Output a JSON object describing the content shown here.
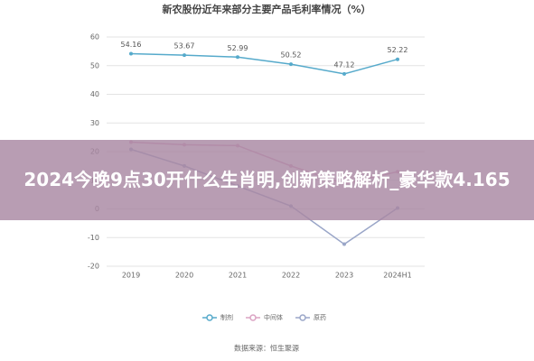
{
  "chart_data": {
    "type": "line",
    "title": "新农股份近年来部分主要产品毛利率情况（%）",
    "categories": [
      "2019",
      "2020",
      "2021",
      "2022",
      "2023",
      "2024H1"
    ],
    "series": [
      {
        "name": "制剂",
        "color": "#56aacb",
        "values": [
          54.16,
          53.67,
          52.99,
          50.52,
          47.12,
          52.22
        ],
        "labels": true
      },
      {
        "name": "中间体",
        "color": "#dba3c3",
        "values": [
          23.3,
          22.4,
          22.1,
          15,
          8.8,
          13
        ]
      },
      {
        "name": "原药",
        "color": "#9aa6c8",
        "values": [
          20.8,
          15,
          8,
          1,
          -12.3,
          0.3
        ]
      }
    ],
    "ylim": [
      -20,
      60
    ],
    "yticks": [
      -20,
      -10,
      0,
      10,
      20,
      30,
      40,
      50,
      60
    ],
    "grid": true,
    "source": "数据来源：恒生聚源"
  },
  "overlay": {
    "text": "2024今晚9点30开什么生肖明,创新策略解析_豪华款4.165"
  }
}
